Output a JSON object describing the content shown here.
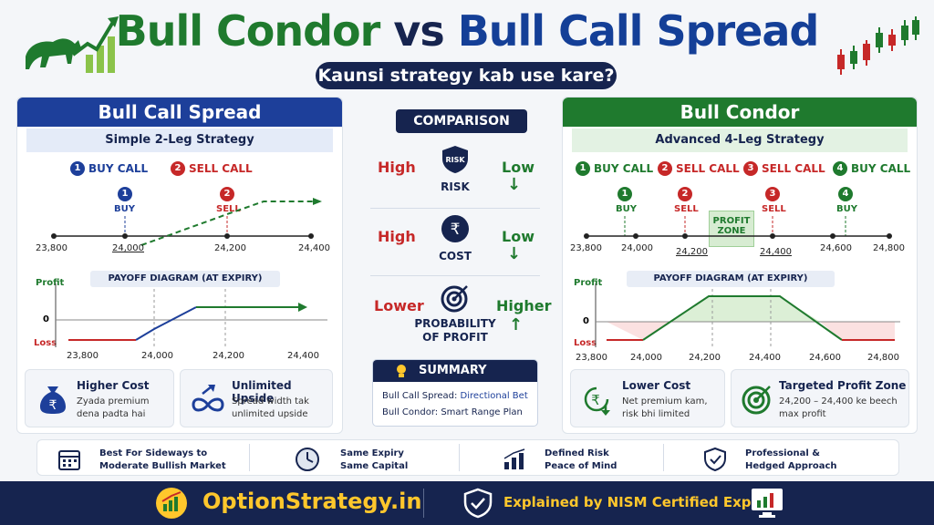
{
  "header": {
    "title_part1": "Bull Condor",
    "title_vs": "vs",
    "title_part2": "Bull Call Spread",
    "subtitle": "Kaunsi strategy kab use kare?"
  },
  "colors": {
    "navy": "#16244f",
    "blue": "#1d3f9a",
    "green": "#1f7a2e",
    "red": "#c62828",
    "gold": "#ffc72c"
  },
  "bull_call_spread": {
    "title": "Bull Call Spread",
    "subtitle": "Simple 2-Leg Strategy",
    "legs": [
      {
        "num": "1",
        "label": "BUY CALL",
        "short": "BUY"
      },
      {
        "num": "2",
        "label": "SELL CALL",
        "short": "SELL"
      }
    ],
    "strikes": [
      "23,800",
      "24,000",
      "24,200",
      "24,400"
    ],
    "payoff_title": "PAYOFF DIAGRAM (AT EXPIRY)",
    "profit_label": "Profit",
    "loss_label": "Loss",
    "zero_label": "0",
    "payoff_ticks": [
      "23,800",
      "24,000",
      "24,200",
      "24,400"
    ],
    "cards": [
      {
        "icon": "money-bag-icon",
        "title": "Higher Cost",
        "line1": "Zyada premium",
        "line2": "dena padta hai"
      },
      {
        "icon": "infinity-icon",
        "title": "Unlimited Upside",
        "line1": "Spread width tak",
        "line2": "unlimited upside"
      }
    ]
  },
  "comparison": {
    "title": "COMPARISON",
    "rows": [
      {
        "left": "High",
        "icon": "risk-shield-icon",
        "icon_text": "RISK",
        "label": "RISK",
        "label2": "",
        "right": "Low",
        "arrow": "↓"
      },
      {
        "left": "High",
        "icon": "rupee-icon",
        "icon_text": "₹",
        "label": "COST",
        "label2": "",
        "right": "Low",
        "arrow": "↓"
      },
      {
        "left": "Lower",
        "icon": "target-icon",
        "icon_text": "",
        "label": "PROBABILITY",
        "label2": "OF PROFIT",
        "right": "Higher",
        "arrow": "↑"
      }
    ],
    "summary_title": "SUMMARY",
    "summary_line1_prefix": "Bull Call Spread: ",
    "summary_line1_value": "Directional Bet",
    "summary_line2": "Bull Condor: Smart Range Plan"
  },
  "bull_condor": {
    "title": "Bull Condor",
    "subtitle": "Advanced 4-Leg Strategy",
    "legs": [
      {
        "num": "1",
        "label": "BUY CALL",
        "short": "BUY"
      },
      {
        "num": "2",
        "label": "SELL CALL",
        "short": "SELL"
      },
      {
        "num": "3",
        "label": "SELL CALL",
        "short": "SELL"
      },
      {
        "num": "4",
        "label": "BUY CALL",
        "short": "BUY"
      }
    ],
    "profit_zone_1": "PROFIT",
    "profit_zone_2": "ZONE",
    "strikes": [
      "23,800",
      "24,000",
      "24,200",
      "24,400",
      "24,600",
      "24,800"
    ],
    "payoff_title": "PAYOFF DIAGRAM (AT EXPIRY)",
    "profit_label": "Profit",
    "loss_label": "Loss",
    "zero_label": "0",
    "payoff_ticks": [
      "23,800",
      "24,000",
      "24,200",
      "24,400",
      "24,600",
      "24,800"
    ],
    "cards": [
      {
        "icon": "rupee-down-icon",
        "title": "Lower Cost",
        "line1": "Net premium kam,",
        "line2": "risk bhi limited"
      },
      {
        "icon": "target-icon",
        "title": "Targeted Profit Zone",
        "line1": "24,200 – 24,400 ke beech",
        "line2": "max profit"
      }
    ]
  },
  "features": [
    {
      "icon": "calendar-icon",
      "line1": "Best For Sideways to",
      "line2": "Moderate Bullish Market"
    },
    {
      "icon": "clock-icon",
      "line1": "Same Expiry",
      "line2": "Same Capital"
    },
    {
      "icon": "bar-chart-icon",
      "line1": "Defined Risk",
      "line2": "Peace of Mind"
    },
    {
      "icon": "shield-check-icon",
      "line1": "Professional &",
      "line2": "Hedged Approach"
    }
  ],
  "footer": {
    "brand_main": "Option",
    "brand_accent": "Strategy.in",
    "expert_prefix": "Explained by ",
    "expert_accent": "NISM",
    "expert_suffix": " Certified Expert"
  }
}
